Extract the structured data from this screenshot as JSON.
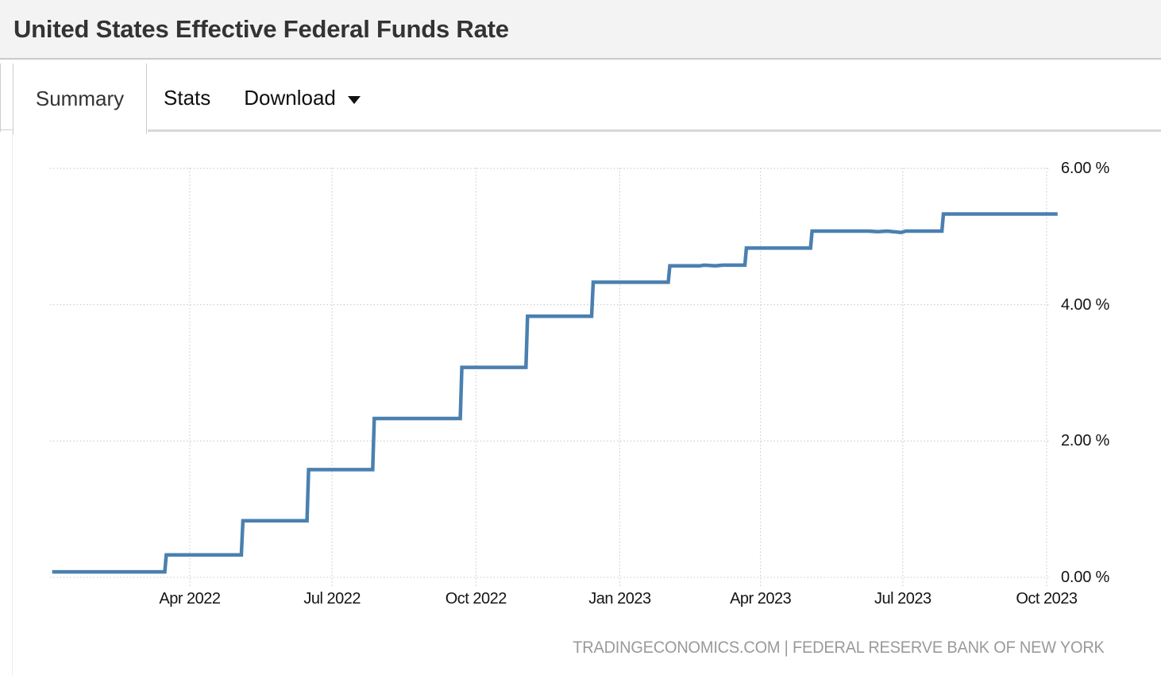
{
  "header": {
    "title": "United States Effective Federal Funds Rate"
  },
  "tabs": {
    "summary": "Summary",
    "stats": "Stats",
    "download": "Download"
  },
  "icons": {
    "download_caret": "chevron-down"
  },
  "colors": {
    "line": "#4a80b0",
    "gridline": "#c9c9c9",
    "header_bg": "#f3f3f3",
    "axis_text": "#141414",
    "credit_text": "#9a9a9a"
  },
  "footer": {
    "credit": "TRADINGECONOMICS.COM | FEDERAL RESERVE BANK OF NEW YORK"
  },
  "chart_data": {
    "type": "line",
    "subtype": "step",
    "title": "United States Effective Federal Funds Rate",
    "unit": "%",
    "grid": "dotted",
    "legend": "none",
    "ylim": [
      0,
      6
    ],
    "xlim": [
      "2022-01-03",
      "2023-10-08"
    ],
    "y_ticks": [
      {
        "value": 6,
        "label": "6.00 %"
      },
      {
        "value": 4,
        "label": "4.00 %"
      },
      {
        "value": 2,
        "label": "2.00 %"
      },
      {
        "value": 0,
        "label": "0.00 %"
      }
    ],
    "x_ticks": [
      {
        "date": "2022-04-01",
        "label": "Apr 2022"
      },
      {
        "date": "2022-07-01",
        "label": "Jul 2022"
      },
      {
        "date": "2022-10-01",
        "label": "Oct 2022"
      },
      {
        "date": "2023-01-01",
        "label": "Jan 2023"
      },
      {
        "date": "2023-04-01",
        "label": "Apr 2023"
      },
      {
        "date": "2023-07-01",
        "label": "Jul 2023"
      },
      {
        "date": "2023-10-01",
        "label": "Oct 2023"
      }
    ],
    "series": [
      {
        "name": "Effective Federal Funds Rate",
        "points": [
          [
            "2022-01-03",
            0.08
          ],
          [
            "2022-03-16",
            0.08
          ],
          [
            "2022-03-17",
            0.33
          ],
          [
            "2022-05-04",
            0.33
          ],
          [
            "2022-05-05",
            0.83
          ],
          [
            "2022-06-15",
            0.83
          ],
          [
            "2022-06-16",
            1.58
          ],
          [
            "2022-07-27",
            1.58
          ],
          [
            "2022-07-28",
            2.33
          ],
          [
            "2022-09-21",
            2.33
          ],
          [
            "2022-09-22",
            3.08
          ],
          [
            "2022-11-02",
            3.08
          ],
          [
            "2022-11-03",
            3.83
          ],
          [
            "2022-12-14",
            3.83
          ],
          [
            "2022-12-15",
            4.33
          ],
          [
            "2023-02-01",
            4.33
          ],
          [
            "2023-02-02",
            4.57
          ],
          [
            "2023-02-21",
            4.57
          ],
          [
            "2023-02-24",
            4.58
          ],
          [
            "2023-03-03",
            4.57
          ],
          [
            "2023-03-08",
            4.58
          ],
          [
            "2023-03-22",
            4.58
          ],
          [
            "2023-03-23",
            4.83
          ],
          [
            "2023-05-03",
            4.83
          ],
          [
            "2023-05-04",
            5.08
          ],
          [
            "2023-06-09",
            5.08
          ],
          [
            "2023-06-15",
            5.07
          ],
          [
            "2023-06-21",
            5.08
          ],
          [
            "2023-06-30",
            5.06
          ],
          [
            "2023-07-03",
            5.08
          ],
          [
            "2023-07-26",
            5.08
          ],
          [
            "2023-07-27",
            5.33
          ],
          [
            "2023-10-08",
            5.33
          ]
        ]
      }
    ]
  }
}
